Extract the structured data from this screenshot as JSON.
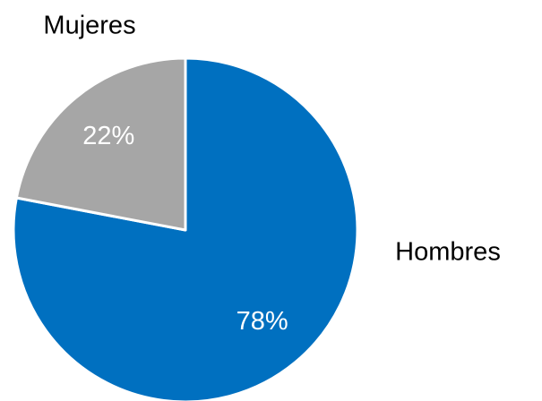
{
  "chart_data": {
    "type": "pie",
    "categories": [
      "Hombres",
      "Mujeres"
    ],
    "values": [
      78,
      22
    ],
    "value_labels": [
      "78%",
      "22%"
    ],
    "colors": [
      "#0070c0",
      "#a6a6a6"
    ]
  }
}
